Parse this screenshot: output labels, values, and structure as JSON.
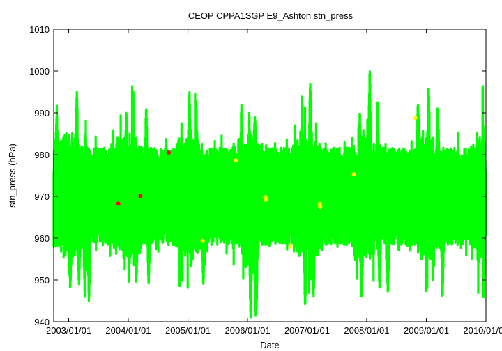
{
  "chart_data": {
    "type": "scatter",
    "title": "CEOP  CPPA1SGP E9_Ashton  stn_press",
    "xlabel": "Date",
    "ylabel": "stn_press (hPa)",
    "ylim": [
      940,
      1010
    ],
    "yticks": [
      940,
      950,
      960,
      970,
      980,
      990,
      1000,
      1010
    ],
    "xlim": [
      "2002-10-01",
      "2010-01-01"
    ],
    "xticks": [
      "2003/01/01",
      "2004/01/01",
      "2005/01/01",
      "2006/01/01",
      "2007/01/01",
      "2008/01/01",
      "2009/01/01",
      "2010/01/01"
    ],
    "grid": false,
    "colors": {
      "main": "#00ff00",
      "flag_red": "#ff0000",
      "flag_yellow": "#ffff00"
    },
    "series": [
      {
        "values_note": "",
        "points": [
          {
            "x": "2003-11-01",
            "y": 968.3
          },
          {
            "x": "2004-03-15",
            "y": 970.1
          },
          {
            "x": "2004-09-05",
            "y": 980.5
          }
        ]
      },
      {
        "points": [
          {
            "x": "2005-04-01",
            "y": 959.4
          },
          {
            "x": "2005-10-20",
            "y": 978.6
          },
          {
            "x": "2006-04-20",
            "y": 969.8
          },
          {
            "x": "2006-04-22",
            "y": 969.2
          },
          {
            "x": "2006-09-20",
            "y": 958.0
          },
          {
            "x": "2007-03-20",
            "y": 968.2
          },
          {
            "x": "2007-03-22",
            "y": 967.5
          },
          {
            "x": "2007-10-15",
            "y": 975.3
          },
          {
            "x": "2008-10-25",
            "y": 988.8
          }
        ]
      }
    ],
    "main_series_envelope": {
      "x_start": "2002-10-01",
      "x_end": "2010-01-01",
      "baseline": 970,
      "bulk_low": 962,
      "bulk_high": 978,
      "peaks_high": [
        {
          "x": "2002-10-20",
          "y": 990
        },
        {
          "x": "2003-02-20",
          "y": 995
        },
        {
          "x": "2003-04-15",
          "y": 985
        },
        {
          "x": "2003-12-20",
          "y": 990
        },
        {
          "x": "2004-02-01",
          "y": 995
        },
        {
          "x": "2004-04-20",
          "y": 991
        },
        {
          "x": "2005-01-10",
          "y": 995
        },
        {
          "x": "2005-02-20",
          "y": 993
        },
        {
          "x": "2005-11-25",
          "y": 992
        },
        {
          "x": "2006-01-10",
          "y": 990
        },
        {
          "x": "2006-02-15",
          "y": 989
        },
        {
          "x": "2006-12-01",
          "y": 994
        },
        {
          "x": "2007-01-20",
          "y": 997
        },
        {
          "x": "2007-11-20",
          "y": 990
        },
        {
          "x": "2008-01-20",
          "y": 1000
        },
        {
          "x": "2008-03-10",
          "y": 988
        },
        {
          "x": "2008-11-10",
          "y": 992
        },
        {
          "x": "2009-01-15",
          "y": 996
        },
        {
          "x": "2009-03-10",
          "y": 991
        },
        {
          "x": "2009-12-15",
          "y": 987
        }
      ],
      "peaks_low": [
        {
          "x": "2003-01-10",
          "y": 948
        },
        {
          "x": "2003-03-05",
          "y": 949
        },
        {
          "x": "2003-04-10",
          "y": 946
        },
        {
          "x": "2003-05-05",
          "y": 945
        },
        {
          "x": "2004-02-20",
          "y": 951
        },
        {
          "x": "2004-05-05",
          "y": 949
        },
        {
          "x": "2005-04-05",
          "y": 949
        },
        {
          "x": "2005-12-20",
          "y": 953
        },
        {
          "x": "2006-01-20",
          "y": 941
        },
        {
          "x": "2006-02-25",
          "y": 943
        },
        {
          "x": "2006-12-20",
          "y": 944
        },
        {
          "x": "2007-02-10",
          "y": 946
        },
        {
          "x": "2007-12-01",
          "y": 946
        },
        {
          "x": "2008-03-20",
          "y": 948
        },
        {
          "x": "2008-05-10",
          "y": 947
        },
        {
          "x": "2009-02-10",
          "y": 950
        },
        {
          "x": "2009-04-10",
          "y": 946
        },
        {
          "x": "2009-11-15",
          "y": 954
        },
        {
          "x": "2009-12-20",
          "y": 950
        }
      ]
    }
  }
}
